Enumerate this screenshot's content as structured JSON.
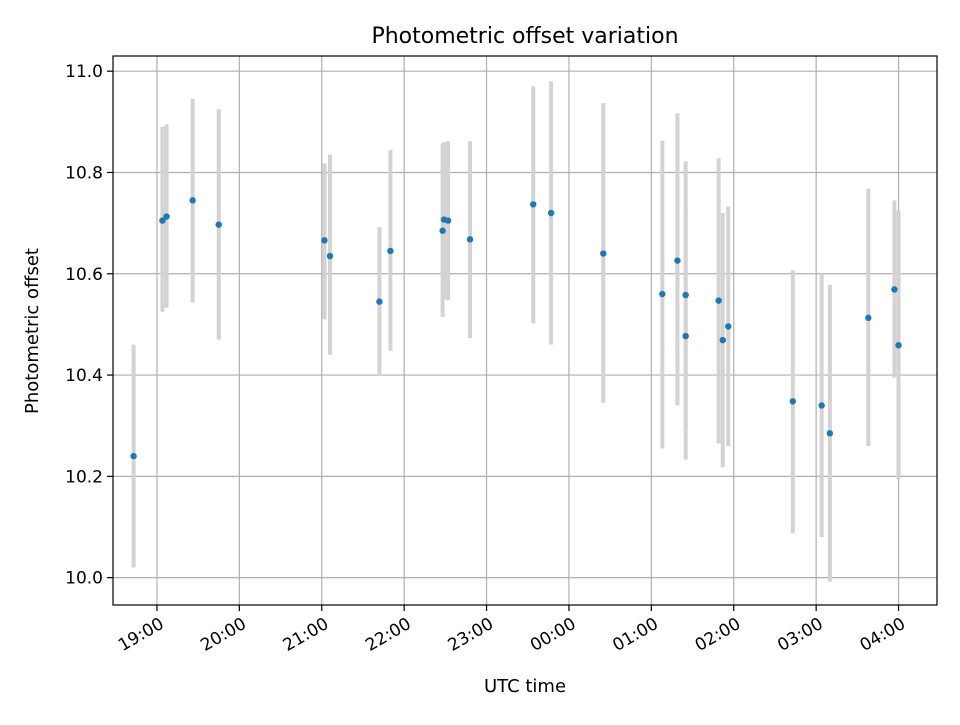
{
  "chart_data": {
    "type": "scatter",
    "title": "Photometric offset variation",
    "xlabel": "UTC time",
    "ylabel": "Photometric offset",
    "grid": true,
    "x_ticks": [
      "19:00",
      "20:00",
      "21:00",
      "22:00",
      "23:00",
      "00:00",
      "01:00",
      "02:00",
      "03:00",
      "04:00"
    ],
    "y_ticks": [
      "10.0",
      "10.2",
      "10.4",
      "10.6",
      "10.8",
      "11.0"
    ],
    "xlim": [
      "18:28",
      "04:28"
    ],
    "ylim": [
      9.946,
      11.03
    ],
    "colors": {
      "point": "#1f77b4",
      "errorbar": "#d3d3d3",
      "grid": "#b0b0b0"
    },
    "series": [
      {
        "points": [
          {
            "t": "18:43",
            "y": 10.24,
            "lo": 10.02,
            "hi": 10.46
          },
          {
            "t": "19:04",
            "y": 10.705,
            "lo": 10.525,
            "hi": 10.89
          },
          {
            "t": "19:07",
            "y": 10.713,
            "lo": 10.533,
            "hi": 10.895
          },
          {
            "t": "19:26",
            "y": 10.745,
            "lo": 10.543,
            "hi": 10.945
          },
          {
            "t": "19:45",
            "y": 10.697,
            "lo": 10.47,
            "hi": 10.925
          },
          {
            "t": "21:02",
            "y": 10.666,
            "lo": 10.51,
            "hi": 10.818
          },
          {
            "t": "21:06",
            "y": 10.635,
            "lo": 10.44,
            "hi": 10.835
          },
          {
            "t": "21:42",
            "y": 10.545,
            "lo": 10.4,
            "hi": 10.692
          },
          {
            "t": "21:50",
            "y": 10.645,
            "lo": 10.448,
            "hi": 10.845
          },
          {
            "t": "22:28",
            "y": 10.685,
            "lo": 10.515,
            "hi": 10.857
          },
          {
            "t": "22:29",
            "y": 10.707,
            "lo": 10.55,
            "hi": 10.86
          },
          {
            "t": "22:32",
            "y": 10.705,
            "lo": 10.548,
            "hi": 10.862
          },
          {
            "t": "22:48",
            "y": 10.668,
            "lo": 10.473,
            "hi": 10.862
          },
          {
            "t": "23:34",
            "y": 10.737,
            "lo": 10.502,
            "hi": 10.97
          },
          {
            "t": "23:47",
            "y": 10.72,
            "lo": 10.46,
            "hi": 10.98
          },
          {
            "t": "00:25",
            "y": 10.64,
            "lo": 10.345,
            "hi": 10.937
          },
          {
            "t": "01:08",
            "y": 10.56,
            "lo": 10.255,
            "hi": 10.863
          },
          {
            "t": "01:19",
            "y": 10.626,
            "lo": 10.34,
            "hi": 10.917
          },
          {
            "t": "01:25",
            "y": 10.558,
            "lo": 10.295,
            "hi": 10.822
          },
          {
            "t": "01:25",
            "y": 10.477,
            "lo": 10.233,
            "hi": 10.72
          },
          {
            "t": "01:49",
            "y": 10.547,
            "lo": 10.265,
            "hi": 10.828
          },
          {
            "t": "01:52",
            "y": 10.469,
            "lo": 10.218,
            "hi": 10.72
          },
          {
            "t": "01:56",
            "y": 10.496,
            "lo": 10.26,
            "hi": 10.733
          },
          {
            "t": "02:43",
            "y": 10.348,
            "lo": 10.088,
            "hi": 10.607
          },
          {
            "t": "03:04",
            "y": 10.34,
            "lo": 10.08,
            "hi": 10.6
          },
          {
            "t": "03:10",
            "y": 10.285,
            "lo": 9.992,
            "hi": 10.578
          },
          {
            "t": "03:38",
            "y": 10.513,
            "lo": 10.26,
            "hi": 10.768
          },
          {
            "t": "03:57",
            "y": 10.569,
            "lo": 10.395,
            "hi": 10.745
          },
          {
            "t": "04:00",
            "y": 10.459,
            "lo": 10.195,
            "hi": 10.725
          }
        ]
      }
    ]
  }
}
